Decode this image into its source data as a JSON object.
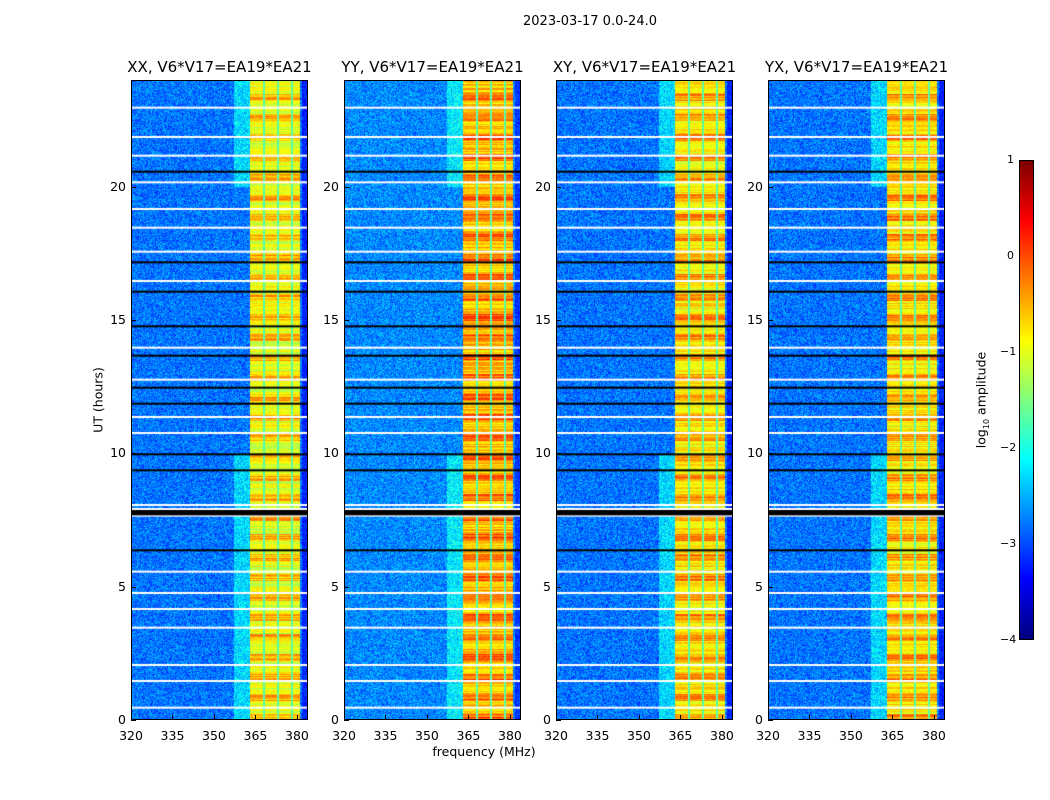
{
  "figure": {
    "suptitle": "2023-03-17 0.0-24.0"
  },
  "chart_data": {
    "type": "heatmap",
    "title": "2023-03-17 0.0-24.0",
    "xlabel": "frequency (MHz)",
    "ylabel": "UT (hours)",
    "xlim": [
      320,
      384
    ],
    "ylim": [
      0,
      24
    ],
    "xticks": [
      "320",
      "335",
      "350",
      "365",
      "380"
    ],
    "yticks": [
      "0",
      "5",
      "10",
      "15",
      "20"
    ],
    "panels": [
      {
        "title": "XX, V6*V17=EA19*EA21",
        "band_level": -1.0,
        "bg_level": -2.8
      },
      {
        "title": "YY, V6*V17=EA19*EA21",
        "band_level": -0.6,
        "bg_level": -2.7
      },
      {
        "title": "XY, V6*V17=EA19*EA21",
        "band_level": -0.8,
        "bg_level": -2.8
      },
      {
        "title": "YX, V6*V17=EA19*EA21",
        "band_level": -0.8,
        "bg_level": -2.8
      }
    ],
    "rfi_band_mhz": [
      363,
      381
    ],
    "band_gaps_mhz": [
      368,
      373,
      378
    ],
    "flagged_hours_white": [
      0.5,
      1.5,
      2.1,
      3.5,
      4.2,
      4.8,
      5.6,
      7.7,
      8.1,
      10.8,
      11.4,
      12.8,
      14.0,
      16.5,
      17.6,
      18.5,
      19.2,
      20.2,
      21.2,
      21.9,
      23.0
    ],
    "flagged_hours_black": [
      6.4,
      7.9,
      9.4,
      10.0,
      11.9,
      12.5,
      13.7,
      14.8,
      16.1,
      17.2,
      20.6
    ],
    "colorbar": {
      "label": "log10 amplitude",
      "range": [
        -4,
        1
      ],
      "ticks": [
        "1",
        "0",
        "−1",
        "−2",
        "−3",
        "−4"
      ],
      "colormap": "jet"
    }
  }
}
